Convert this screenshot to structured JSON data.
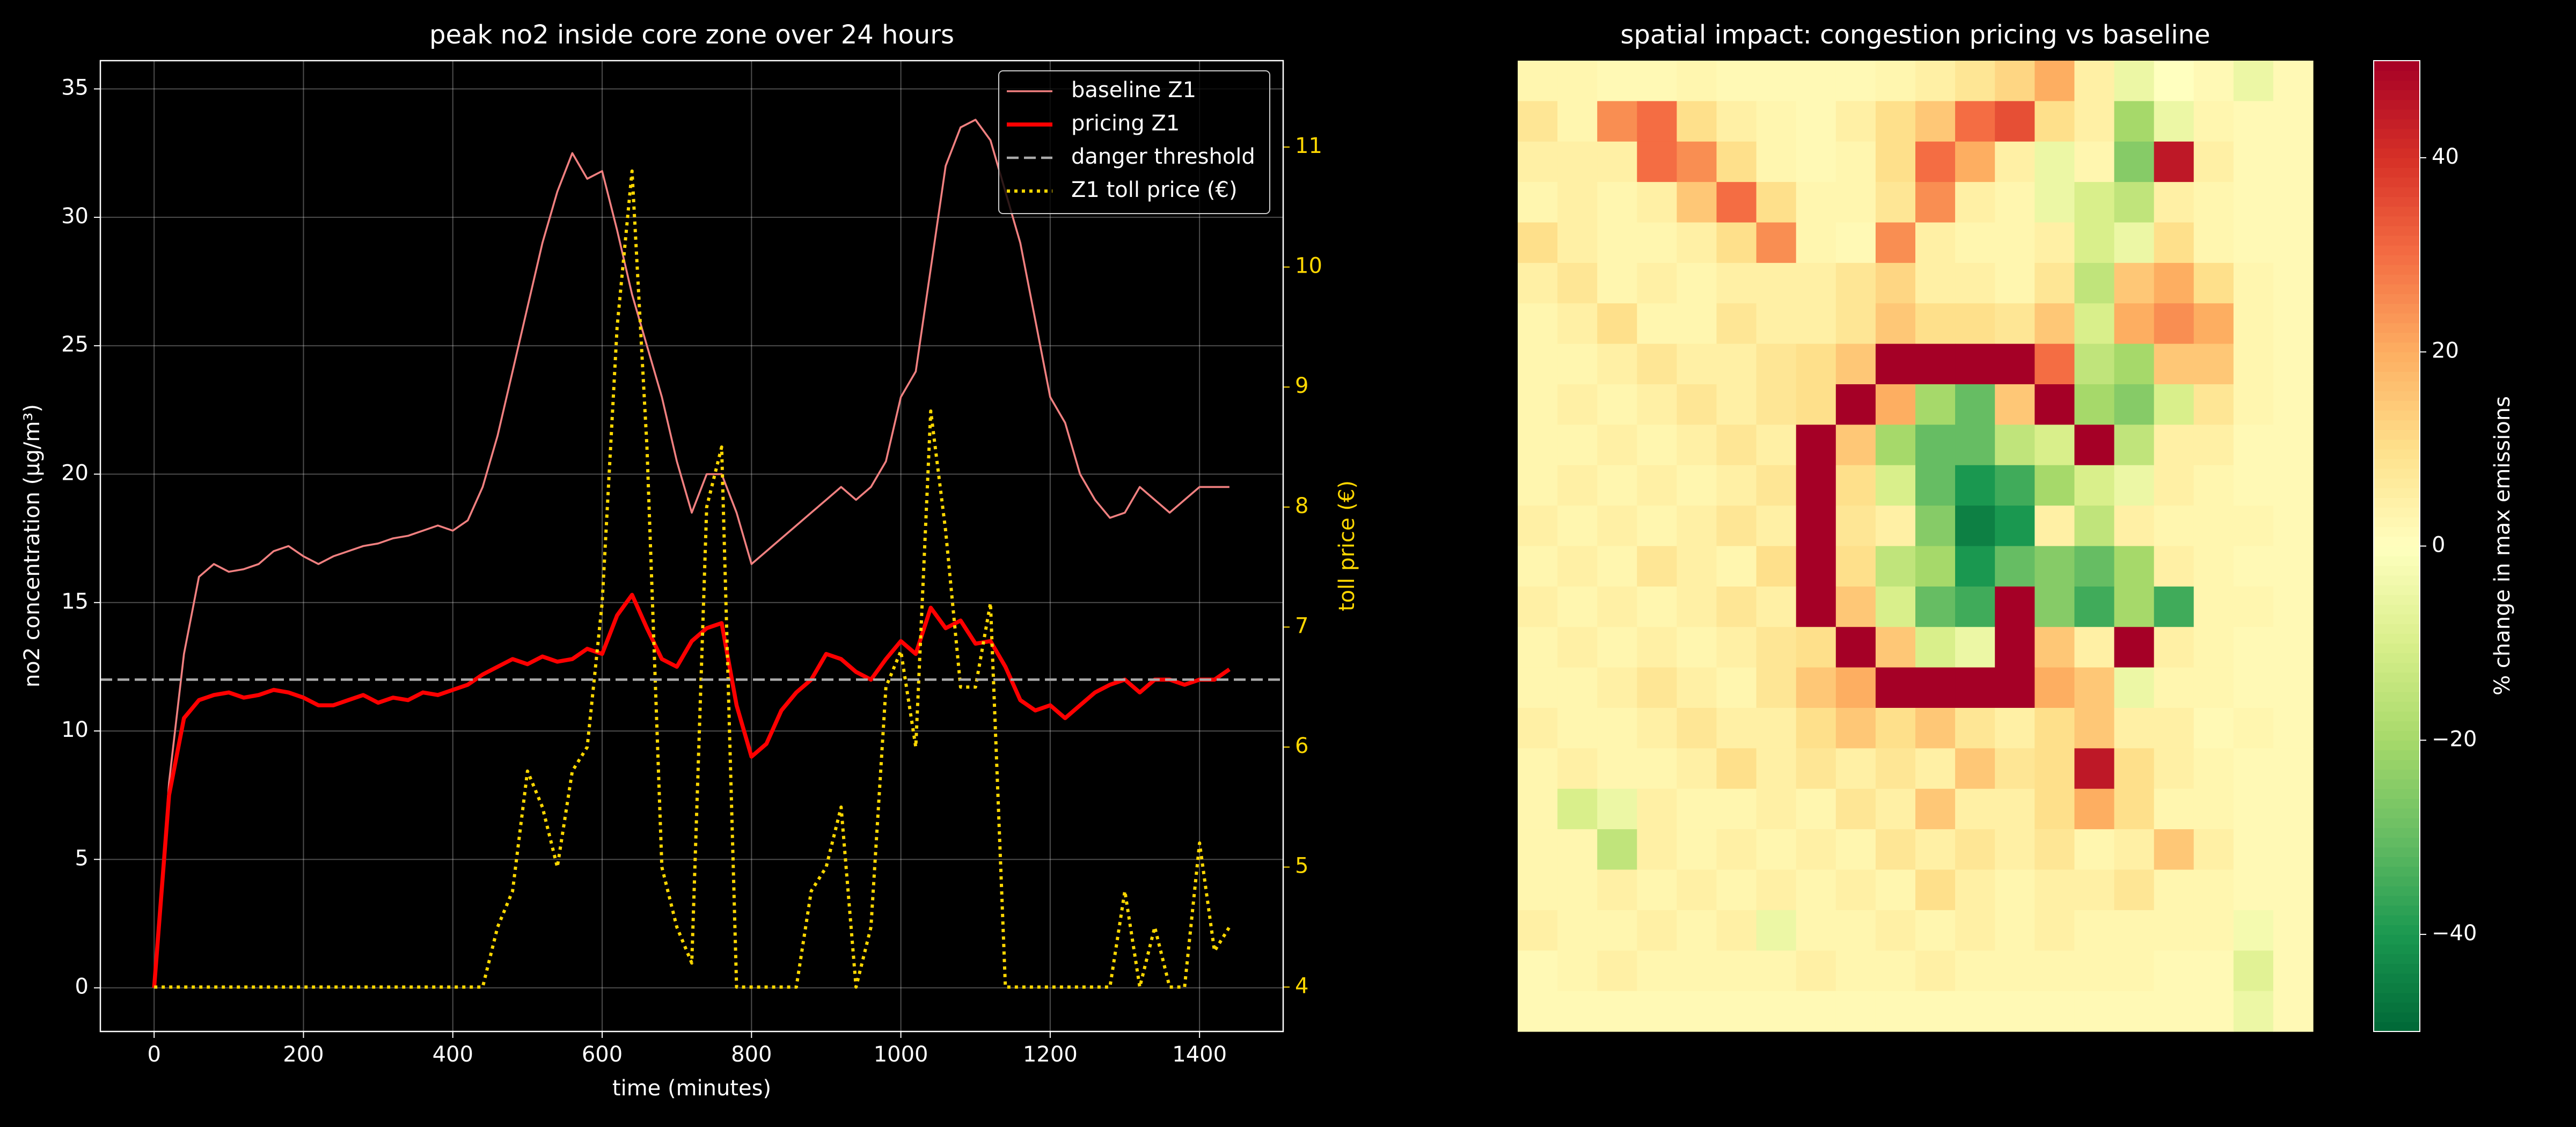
{
  "chart_data": [
    {
      "type": "line",
      "title": "peak no2 inside core zone over 24 hours",
      "xlabel": "time (minutes)",
      "ylabel": "no2 concentration (µg/m³)",
      "y2label": "toll price (€)",
      "y2color": "#ffd700",
      "x": [
        0,
        20,
        40,
        60,
        80,
        100,
        120,
        140,
        160,
        180,
        200,
        220,
        240,
        260,
        280,
        300,
        320,
        340,
        360,
        380,
        400,
        420,
        440,
        460,
        480,
        500,
        520,
        540,
        560,
        580,
        600,
        620,
        640,
        660,
        680,
        700,
        720,
        740,
        760,
        780,
        800,
        820,
        840,
        860,
        880,
        900,
        920,
        940,
        960,
        980,
        1000,
        1020,
        1040,
        1060,
        1080,
        1100,
        1120,
        1140,
        1160,
        1180,
        1200,
        1220,
        1240,
        1260,
        1280,
        1300,
        1320,
        1340,
        1360,
        1380,
        1400,
        1420,
        1440
      ],
      "xlim": [
        -72,
        1512
      ],
      "ylim": [
        -1.7,
        36.1
      ],
      "y2lim": [
        3.63,
        11.72
      ],
      "xticks": [
        0,
        200,
        400,
        600,
        800,
        1000,
        1200,
        1400
      ],
      "yticks": [
        0,
        5,
        10,
        15,
        20,
        25,
        30,
        35
      ],
      "y2ticks": [
        4,
        5,
        6,
        7,
        8,
        9,
        10,
        11
      ],
      "grid": true,
      "legend": "upper right",
      "series": [
        {
          "name": "baseline Z1",
          "color": "#f08080",
          "style": "solid",
          "width": 1.2,
          "values": [
            0,
            8,
            13,
            16,
            16.5,
            16.2,
            16.3,
            16.5,
            17,
            17.2,
            16.8,
            16.5,
            16.8,
            17,
            17.2,
            17.3,
            17.5,
            17.6,
            17.8,
            18,
            17.8,
            18.2,
            19.5,
            21.5,
            24,
            26.5,
            29,
            31,
            32.5,
            31.5,
            31.8,
            29.5,
            27,
            25,
            23,
            20.5,
            18.5,
            20,
            20,
            18.5,
            16.5,
            17,
            17.5,
            18,
            18.5,
            19,
            19.5,
            19,
            19.5,
            20.5,
            23,
            24,
            28,
            32,
            33.5,
            33.8,
            33,
            31,
            29,
            26,
            23,
            22,
            20,
            19,
            18.3,
            18.5,
            19.5,
            19,
            18.5,
            19,
            19.5,
            19.5,
            19.5
          ]
        },
        {
          "name": "pricing Z1",
          "color": "#ff0000",
          "style": "solid",
          "width": 2.5,
          "values": [
            0,
            7.5,
            10.5,
            11.2,
            11.4,
            11.5,
            11.3,
            11.4,
            11.6,
            11.5,
            11.3,
            11,
            11,
            11.2,
            11.4,
            11.1,
            11.3,
            11.2,
            11.5,
            11.4,
            11.6,
            11.8,
            12.2,
            12.5,
            12.8,
            12.6,
            12.9,
            12.7,
            12.8,
            13.2,
            13,
            14.5,
            15.3,
            14,
            12.8,
            12.5,
            13.5,
            14,
            14.2,
            11,
            9,
            9.5,
            10.8,
            11.5,
            12,
            13,
            12.8,
            12.3,
            12,
            12.8,
            13.5,
            13,
            14.8,
            14,
            14.3,
            13.4,
            13.5,
            12.5,
            11.2,
            10.8,
            11,
            10.5,
            11,
            11.5,
            11.8,
            12,
            11.5,
            12,
            12,
            11.8,
            12,
            12,
            12.4
          ]
        },
        {
          "name": "Z1 toll price (€)",
          "color": "#ffd700",
          "style": "dotted",
          "width": 2,
          "axis": "y2",
          "values": [
            4,
            4,
            4,
            4,
            4,
            4,
            4,
            4,
            4,
            4,
            4,
            4,
            4,
            4,
            4,
            4,
            4,
            4,
            4,
            4,
            4,
            4,
            4,
            4.5,
            4.8,
            5.8,
            5.5,
            5,
            5.8,
            6,
            7.2,
            9.5,
            10.8,
            8.5,
            5,
            4.5,
            4.2,
            8,
            8.5,
            4,
            4,
            4,
            4,
            4,
            4.8,
            5,
            5.5,
            4,
            4.5,
            6.5,
            6.8,
            6,
            8.8,
            7.8,
            6.5,
            6.5,
            7.2,
            4,
            4,
            4,
            4,
            4,
            4,
            4,
            4,
            4.8,
            4,
            4.5,
            4,
            4,
            5.2,
            4.3,
            4.5
          ]
        }
      ],
      "hlines": [
        {
          "name": "danger threshold",
          "value": 12,
          "color": "#aaaaaa",
          "style": "dashed"
        }
      ]
    },
    {
      "type": "heatmap",
      "title": "spatial impact: congestion pricing vs baseline",
      "colormap": "RdYlGn_r",
      "clim": [
        -50,
        50
      ],
      "cbar_label": "% change in max emissions",
      "cticks": [
        {
          "value": -40,
          "label": "−40"
        },
        {
          "value": -20,
          "label": "−20"
        },
        0,
        20,
        40
      ],
      "values": [
        [
          3,
          3,
          2,
          2,
          3,
          2,
          2,
          2,
          2,
          3,
          5,
          8,
          12,
          20,
          5,
          -5,
          0,
          2,
          -5,
          2
        ],
        [
          8,
          3,
          25,
          30,
          10,
          5,
          3,
          2,
          5,
          10,
          15,
          30,
          35,
          10,
          5,
          -20,
          -5,
          3,
          2,
          2
        ],
        [
          5,
          5,
          5,
          30,
          25,
          10,
          3,
          2,
          3,
          10,
          30,
          20,
          5,
          -5,
          3,
          -25,
          45,
          5,
          2,
          2
        ],
        [
          3,
          5,
          3,
          5,
          15,
          30,
          10,
          3,
          3,
          8,
          25,
          5,
          3,
          -5,
          -10,
          -15,
          5,
          3,
          2,
          2
        ],
        [
          10,
          5,
          3,
          3,
          5,
          10,
          25,
          3,
          2,
          25,
          5,
          3,
          3,
          5,
          -10,
          -5,
          10,
          3,
          2,
          2
        ],
        [
          5,
          8,
          3,
          5,
          3,
          5,
          5,
          5,
          8,
          12,
          5,
          5,
          3,
          8,
          -15,
          15,
          20,
          10,
          3,
          2
        ],
        [
          3,
          5,
          10,
          3,
          3,
          8,
          5,
          5,
          8,
          15,
          10,
          10,
          8,
          15,
          -10,
          20,
          25,
          20,
          3,
          2
        ],
        [
          3,
          3,
          5,
          8,
          5,
          5,
          8,
          10,
          15,
          50,
          50,
          50,
          50,
          30,
          -15,
          -20,
          15,
          15,
          3,
          2
        ],
        [
          3,
          5,
          3,
          5,
          8,
          5,
          8,
          10,
          50,
          20,
          -20,
          -30,
          15,
          50,
          -20,
          -25,
          -10,
          8,
          3,
          2
        ],
        [
          3,
          3,
          5,
          3,
          5,
          8,
          5,
          50,
          15,
          -20,
          -30,
          -30,
          -15,
          -10,
          50,
          -15,
          5,
          5,
          2,
          2
        ],
        [
          3,
          5,
          3,
          5,
          3,
          5,
          8,
          50,
          10,
          -10,
          -30,
          -40,
          -35,
          -20,
          -10,
          -5,
          5,
          3,
          2,
          2
        ],
        [
          5,
          3,
          5,
          3,
          5,
          8,
          5,
          50,
          8,
          5,
          -25,
          -45,
          -40,
          5,
          -15,
          5,
          3,
          3,
          3,
          2
        ],
        [
          3,
          5,
          3,
          8,
          5,
          3,
          10,
          50,
          10,
          -15,
          -20,
          -40,
          -30,
          -25,
          -30,
          -20,
          5,
          3,
          2,
          2
        ],
        [
          5,
          3,
          5,
          3,
          5,
          8,
          5,
          50,
          15,
          -10,
          -30,
          -35,
          50,
          -25,
          -35,
          -20,
          -35,
          3,
          3,
          2
        ],
        [
          3,
          5,
          3,
          5,
          3,
          5,
          8,
          10,
          50,
          15,
          -10,
          -5,
          50,
          15,
          5,
          50,
          5,
          3,
          2,
          2
        ],
        [
          3,
          3,
          5,
          8,
          5,
          3,
          8,
          15,
          20,
          50,
          50,
          50,
          50,
          20,
          15,
          -5,
          3,
          3,
          2,
          2
        ],
        [
          5,
          3,
          3,
          5,
          8,
          5,
          5,
          10,
          15,
          10,
          15,
          8,
          5,
          10,
          15,
          5,
          5,
          2,
          3,
          2
        ],
        [
          3,
          5,
          3,
          3,
          5,
          10,
          5,
          8,
          5,
          8,
          5,
          15,
          8,
          10,
          45,
          10,
          5,
          3,
          2,
          2
        ],
        [
          3,
          -10,
          -5,
          5,
          3,
          3,
          5,
          3,
          8,
          5,
          15,
          5,
          5,
          10,
          20,
          10,
          3,
          3,
          2,
          2
        ],
        [
          3,
          3,
          -15,
          5,
          3,
          5,
          3,
          5,
          3,
          8,
          5,
          8,
          5,
          8,
          3,
          5,
          15,
          5,
          2,
          2
        ],
        [
          3,
          3,
          5,
          3,
          5,
          3,
          5,
          3,
          5,
          3,
          10,
          5,
          3,
          5,
          5,
          8,
          3,
          3,
          2,
          2
        ],
        [
          5,
          3,
          3,
          5,
          3,
          5,
          -5,
          3,
          3,
          5,
          3,
          5,
          3,
          5,
          3,
          3,
          3,
          3,
          -3,
          2
        ],
        [
          2,
          3,
          5,
          3,
          3,
          3,
          3,
          5,
          3,
          3,
          5,
          3,
          3,
          3,
          3,
          3,
          2,
          2,
          -8,
          2
        ],
        [
          2,
          2,
          2,
          2,
          2,
          2,
          2,
          2,
          2,
          2,
          2,
          2,
          2,
          2,
          2,
          2,
          2,
          2,
          -5,
          2
        ]
      ]
    }
  ]
}
